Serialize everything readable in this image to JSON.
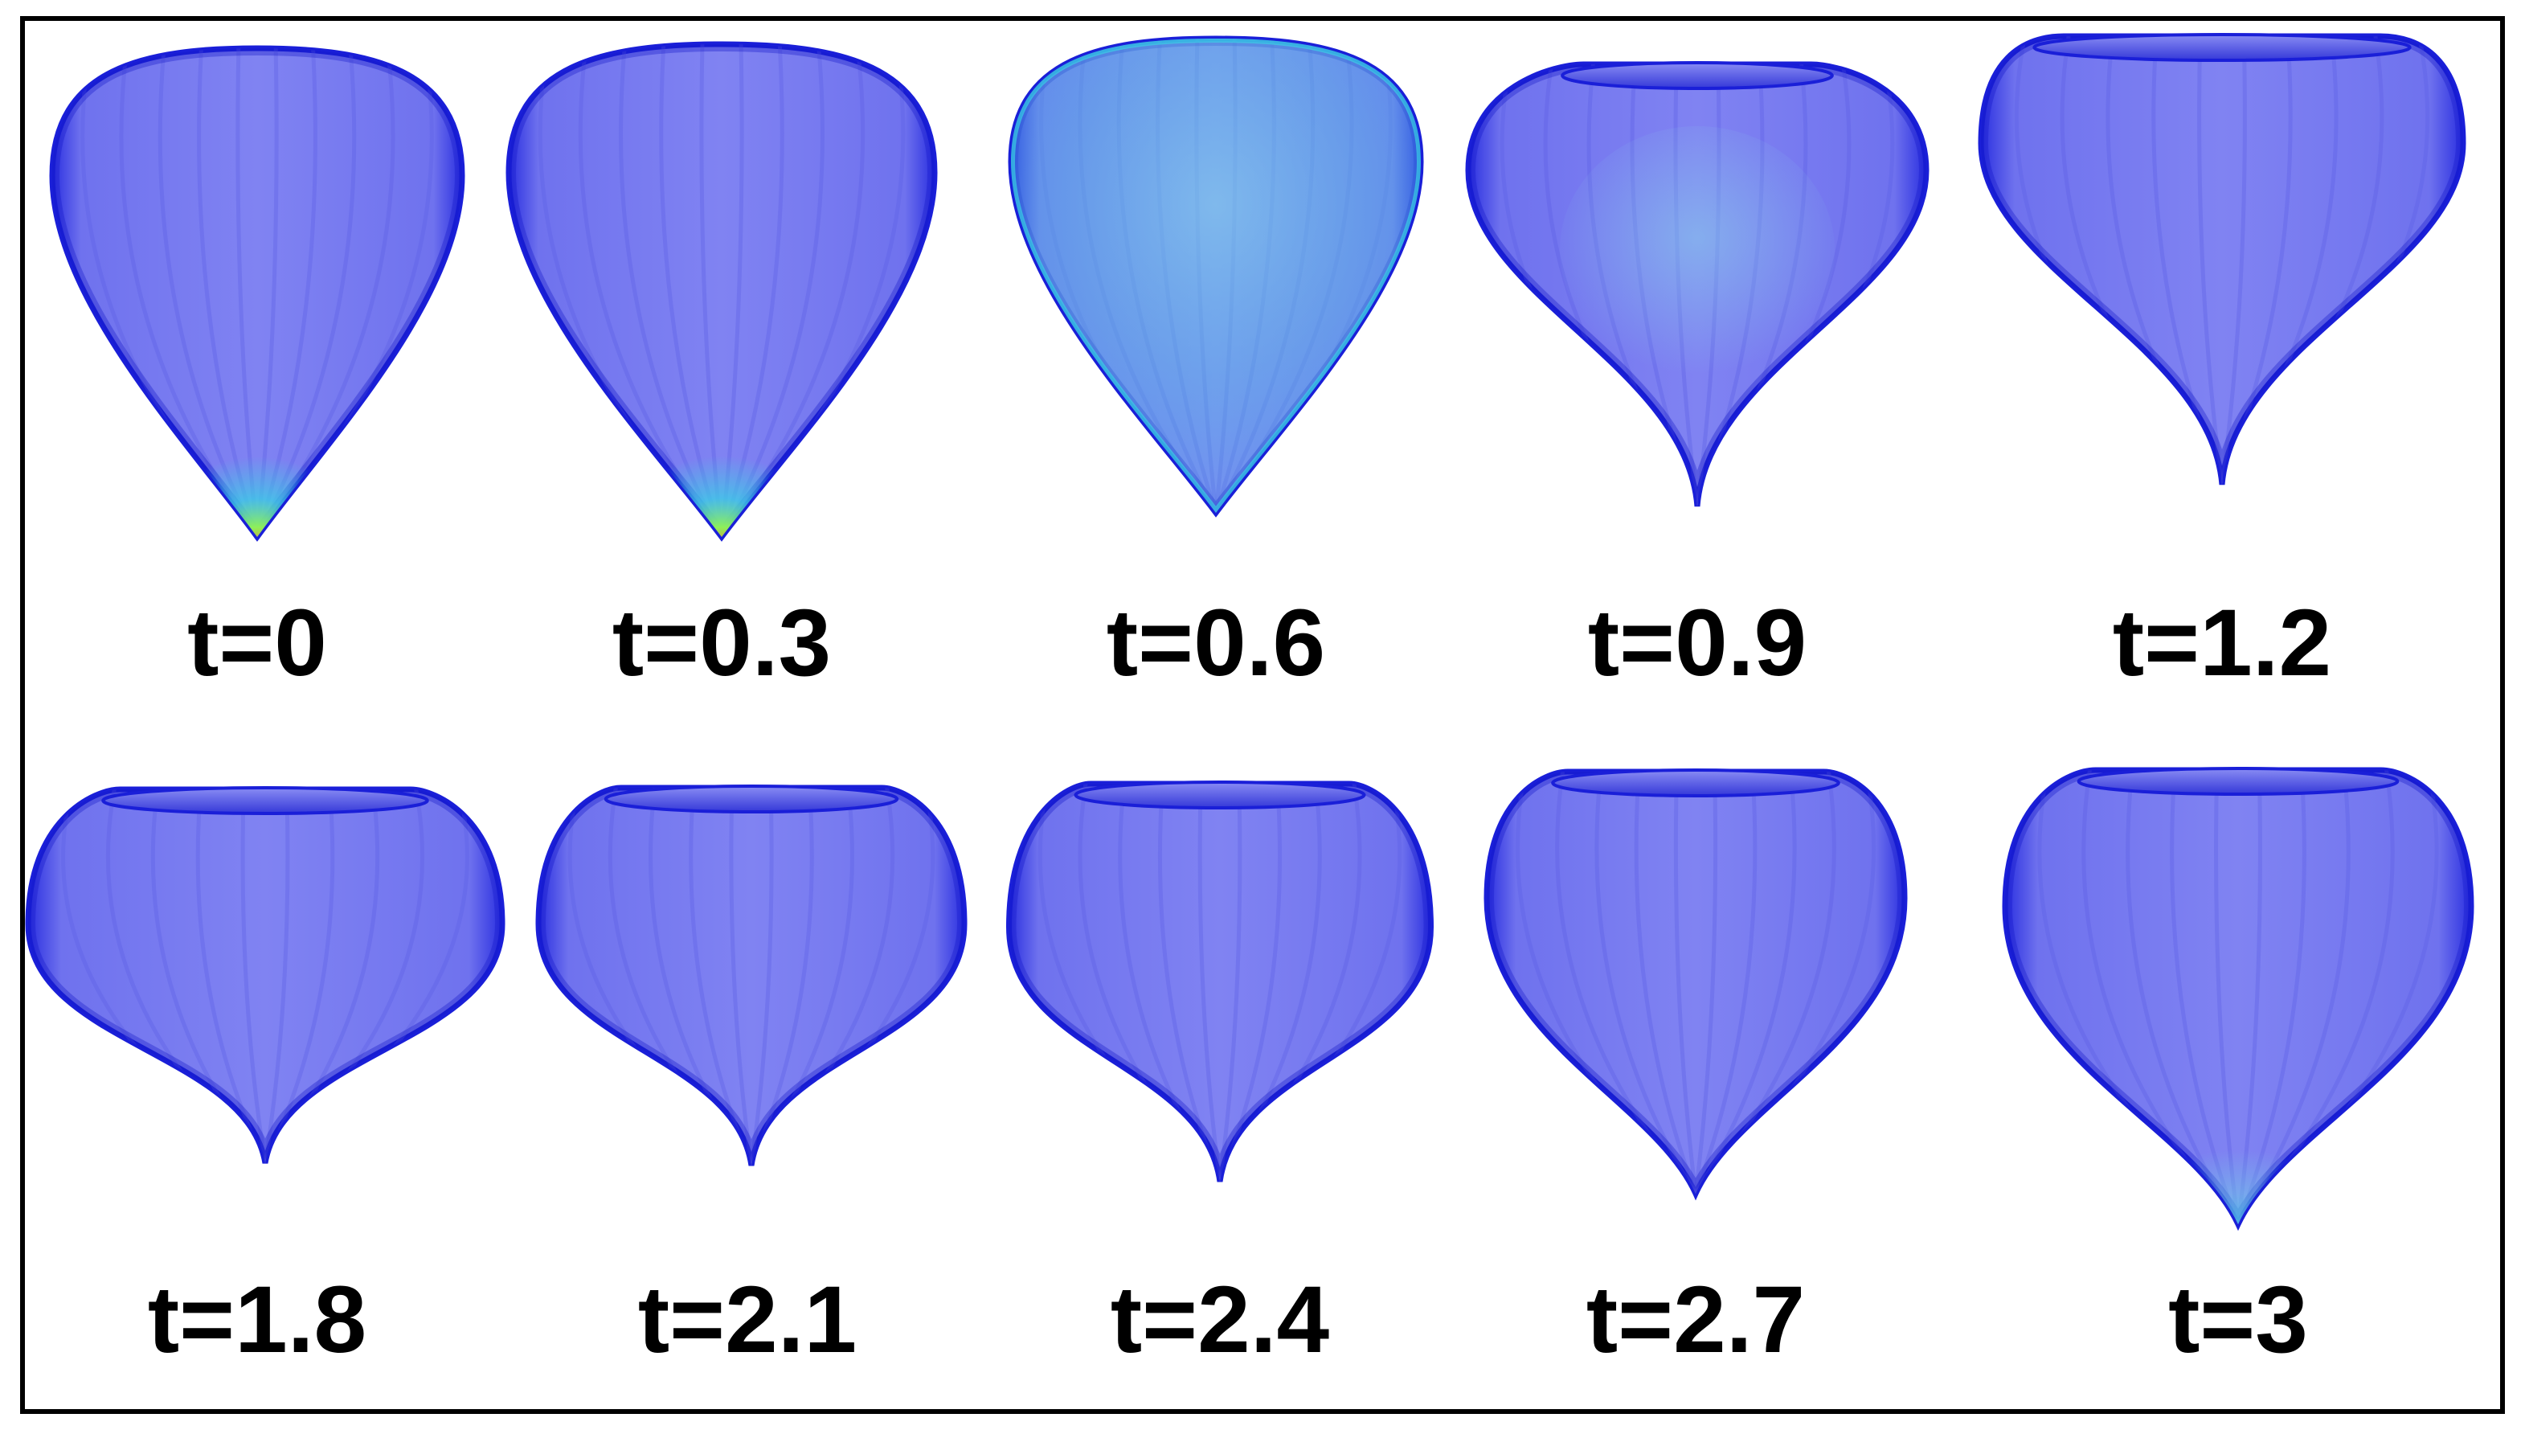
{
  "frames": [
    {
      "label": "t=0",
      "shape": "teardrop",
      "hotspot": "tip"
    },
    {
      "label": "t=0.3",
      "shape": "teardrop",
      "hotspot": "tip"
    },
    {
      "label": "t=0.6",
      "shape": "teardrop",
      "hotspot": "body"
    },
    {
      "label": "t=0.9",
      "shape": "cusp-flat-top",
      "hotspot": "body-light"
    },
    {
      "label": "t=1.2",
      "shape": "cusp-wide-top",
      "hotspot": "none"
    },
    {
      "label": "t=1.8",
      "shape": "pumpkin",
      "hotspot": "none"
    },
    {
      "label": "t=2.1",
      "shape": "pumpkin",
      "hotspot": "none"
    },
    {
      "label": "t=2.4",
      "shape": "pumpkin",
      "hotspot": "none"
    },
    {
      "label": "t=2.7",
      "shape": "onion",
      "hotspot": "none"
    },
    {
      "label": "t=3",
      "shape": "onion-tall",
      "hotspot": "tip-light"
    }
  ],
  "colors": {
    "membrane_fill": "#7b7df0",
    "membrane_edge": "#1a1fd8",
    "stress_low": "#3ad0e6",
    "stress_mid": "#8ef05a",
    "stress_high": "#f07a2a",
    "frame_border": "#000000",
    "label_color": "#000000"
  }
}
